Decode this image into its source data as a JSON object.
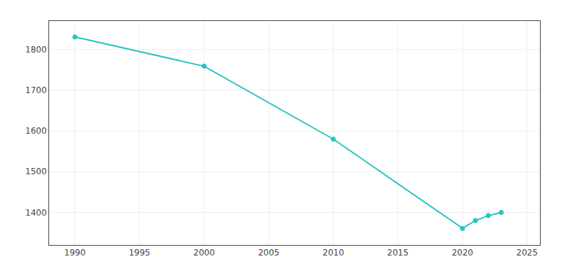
{
  "chart_data": {
    "type": "line",
    "x": [
      1990,
      2000,
      2010,
      2020,
      2021,
      2022,
      2023
    ],
    "values": [
      1831,
      1759,
      1580,
      1361,
      1380,
      1392,
      1400
    ],
    "color": "#29c4c0",
    "marker": "circle",
    "xlim": [
      1988,
      2026
    ],
    "ylim": [
      1320,
      1870
    ],
    "xticks": [
      1990,
      1995,
      2000,
      2005,
      2010,
      2015,
      2020,
      2025
    ],
    "yticks": [
      1400,
      1500,
      1600,
      1700,
      1800
    ],
    "grid": true
  }
}
